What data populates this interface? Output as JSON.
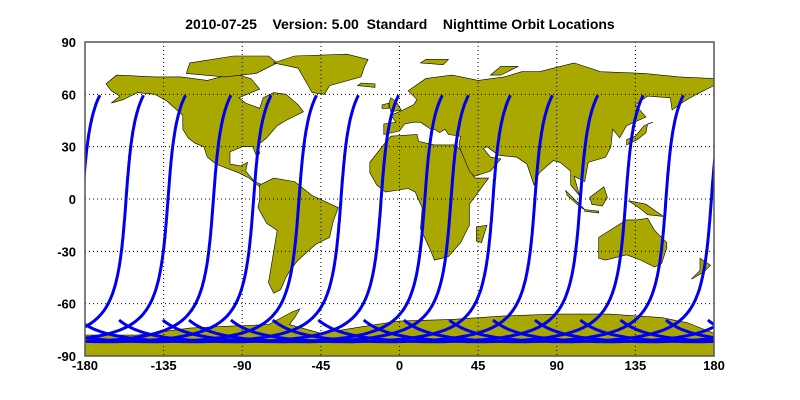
{
  "title": "2010-07-25    Version: 5.00  Standard    Nighttime Orbit Locations",
  "chart_data": {
    "type": "map",
    "title": "2010-07-25    Version: 5.00  Standard    Nighttime Orbit Locations",
    "projection": "equirectangular",
    "xlim": [
      -180,
      180
    ],
    "ylim": [
      -90,
      90
    ],
    "x_ticks": [
      "-180",
      "-135",
      "-90",
      "-45",
      "0",
      "45",
      "90",
      "135",
      "180"
    ],
    "y_ticks": [
      "90",
      "60",
      "30",
      "0",
      "-30",
      "-60",
      "-90"
    ],
    "grid": true,
    "land_color": "#a8a800",
    "track_color": "#0000ee",
    "orbit_tracks": {
      "description_lat_range": [
        -82,
        60
      ],
      "northern_end_longitudes": [
        -171,
        -146,
        -122,
        -96,
        -73,
        -47,
        -23,
        0,
        25,
        40,
        64,
        88,
        114,
        140,
        163
      ]
    }
  }
}
